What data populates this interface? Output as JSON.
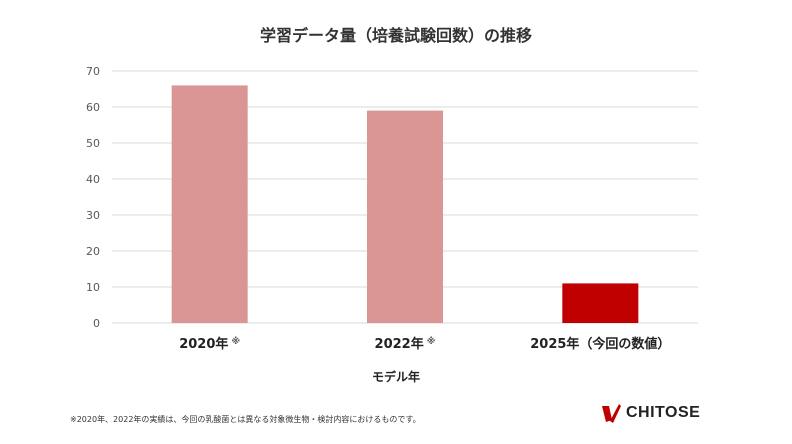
{
  "chart_data": {
    "type": "bar",
    "title": "学習データ量（培養試験回数）の推移",
    "xlabel": "モデル年",
    "ylabel": "",
    "ylim": [
      0,
      70
    ],
    "yticks": [
      0,
      10,
      20,
      30,
      40,
      50,
      60,
      70
    ],
    "grid": true,
    "categories": [
      {
        "label": "2020年",
        "mark": "※"
      },
      {
        "label": "2022年",
        "mark": "※"
      },
      {
        "label": "2025年（今回の数値）",
        "mark": ""
      }
    ],
    "values": [
      66,
      59,
      11
    ],
    "colors": [
      "#d99694",
      "#d99694",
      "#c00000"
    ]
  },
  "footnote": "※2020年、2022年の実績は、今回の乳酸菌とは異なる対象微生物・検討内容におけるものです。",
  "logo": {
    "text": "CHITOSE",
    "color": "#c00000"
  }
}
